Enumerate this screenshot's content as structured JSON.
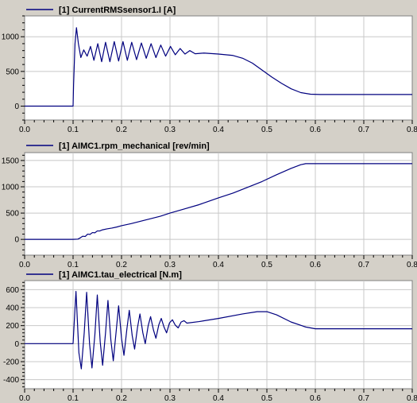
{
  "chart_data": [
    {
      "type": "line",
      "series": [
        {
          "name": "[1] CurrentRMSsensor1.I [A]",
          "color": "#00007f"
        }
      ],
      "xlim": [
        0,
        0.8
      ],
      "ylim": [
        -200,
        1300
      ],
      "x_ticks": [
        0.0,
        0.1,
        0.2,
        0.3,
        0.4,
        0.5,
        0.6,
        0.7,
        0.8
      ],
      "x_tick_labels": [
        "0.0",
        "0.1",
        "0.2",
        "0.3",
        "0.4",
        "0.5",
        "0.6",
        "0.7",
        "0.8"
      ],
      "y_ticks": [
        0,
        500,
        1000
      ],
      "y_tick_labels": [
        "0",
        "500",
        "1000"
      ],
      "grid": true,
      "legend": "top-left",
      "points": [
        [
          0.0,
          0
        ],
        [
          0.1,
          0
        ],
        [
          0.101,
          300
        ],
        [
          0.104,
          900
        ],
        [
          0.107,
          1130
        ],
        [
          0.111,
          900
        ],
        [
          0.116,
          700
        ],
        [
          0.122,
          810
        ],
        [
          0.129,
          720
        ],
        [
          0.136,
          860
        ],
        [
          0.143,
          660
        ],
        [
          0.151,
          900
        ],
        [
          0.159,
          640
        ],
        [
          0.167,
          920
        ],
        [
          0.176,
          640
        ],
        [
          0.185,
          930
        ],
        [
          0.194,
          650
        ],
        [
          0.203,
          930
        ],
        [
          0.212,
          660
        ],
        [
          0.221,
          920
        ],
        [
          0.231,
          670
        ],
        [
          0.241,
          910
        ],
        [
          0.251,
          690
        ],
        [
          0.261,
          900
        ],
        [
          0.271,
          700
        ],
        [
          0.281,
          880
        ],
        [
          0.291,
          720
        ],
        [
          0.301,
          860
        ],
        [
          0.311,
          740
        ],
        [
          0.321,
          830
        ],
        [
          0.331,
          750
        ],
        [
          0.341,
          800
        ],
        [
          0.352,
          755
        ],
        [
          0.37,
          765
        ],
        [
          0.4,
          750
        ],
        [
          0.43,
          730
        ],
        [
          0.45,
          690
        ],
        [
          0.47,
          620
        ],
        [
          0.49,
          520
        ],
        [
          0.51,
          420
        ],
        [
          0.53,
          330
        ],
        [
          0.55,
          250
        ],
        [
          0.57,
          195
        ],
        [
          0.59,
          172
        ],
        [
          0.61,
          168
        ],
        [
          0.8,
          168
        ]
      ]
    },
    {
      "type": "line",
      "series": [
        {
          "name": "[1] AIMC1.rpm_mechanical [rev/min]",
          "color": "#00007f"
        }
      ],
      "xlim": [
        0,
        0.8
      ],
      "ylim": [
        -300,
        1650
      ],
      "x_ticks": [
        0.0,
        0.1,
        0.2,
        0.3,
        0.4,
        0.5,
        0.6,
        0.7,
        0.8
      ],
      "x_tick_labels": [
        "0.0",
        "0.1",
        "0.2",
        "0.3",
        "0.4",
        "0.5",
        "0.6",
        "0.7",
        "0.8"
      ],
      "y_ticks": [
        0,
        500,
        1000,
        1500
      ],
      "y_tick_labels": [
        "0",
        "500",
        "1000",
        "1500"
      ],
      "grid": true,
      "legend": "top-left",
      "points": [
        [
          0.0,
          0
        ],
        [
          0.1,
          0
        ],
        [
          0.11,
          5
        ],
        [
          0.115,
          30
        ],
        [
          0.12,
          60
        ],
        [
          0.125,
          55
        ],
        [
          0.13,
          100
        ],
        [
          0.135,
          95
        ],
        [
          0.14,
          130
        ],
        [
          0.145,
          125
        ],
        [
          0.15,
          160
        ],
        [
          0.155,
          160
        ],
        [
          0.16,
          180
        ],
        [
          0.17,
          200
        ],
        [
          0.18,
          215
        ],
        [
          0.19,
          235
        ],
        [
          0.2,
          260
        ],
        [
          0.22,
          300
        ],
        [
          0.25,
          370
        ],
        [
          0.28,
          440
        ],
        [
          0.3,
          500
        ],
        [
          0.33,
          580
        ],
        [
          0.36,
          660
        ],
        [
          0.4,
          790
        ],
        [
          0.43,
          880
        ],
        [
          0.46,
          990
        ],
        [
          0.49,
          1100
        ],
        [
          0.52,
          1230
        ],
        [
          0.55,
          1350
        ],
        [
          0.57,
          1420
        ],
        [
          0.58,
          1440
        ],
        [
          0.8,
          1440
        ]
      ]
    },
    {
      "type": "line",
      "series": [
        {
          "name": "[1] AIMC1.tau_electrical [N.m]",
          "color": "#00007f"
        }
      ],
      "xlim": [
        0,
        0.8
      ],
      "ylim": [
        -500,
        700
      ],
      "x_ticks": [
        0.0,
        0.1,
        0.2,
        0.3,
        0.4,
        0.5,
        0.6,
        0.7,
        0.8
      ],
      "x_tick_labels": [
        "0.0",
        "0.1",
        "0.2",
        "0.3",
        "0.4",
        "0.5",
        "0.6",
        "0.7",
        "0.8"
      ],
      "y_ticks": [
        -400,
        -200,
        0,
        200,
        400,
        600
      ],
      "y_tick_labels": [
        "-400",
        "-200",
        "0",
        "200",
        "400",
        "600"
      ],
      "grid": true,
      "legend": "top-left",
      "points": [
        [
          0.0,
          0
        ],
        [
          0.1,
          0
        ],
        [
          0.102,
          200
        ],
        [
          0.106,
          580
        ],
        [
          0.112,
          -100
        ],
        [
          0.117,
          -280
        ],
        [
          0.123,
          120
        ],
        [
          0.128,
          570
        ],
        [
          0.134,
          0
        ],
        [
          0.139,
          -270
        ],
        [
          0.145,
          100
        ],
        [
          0.15,
          540
        ],
        [
          0.156,
          20
        ],
        [
          0.161,
          -240
        ],
        [
          0.167,
          120
        ],
        [
          0.172,
          480
        ],
        [
          0.178,
          40
        ],
        [
          0.183,
          -190
        ],
        [
          0.189,
          140
        ],
        [
          0.194,
          420
        ],
        [
          0.2,
          60
        ],
        [
          0.205,
          -130
        ],
        [
          0.211,
          160
        ],
        [
          0.216,
          370
        ],
        [
          0.222,
          90
        ],
        [
          0.227,
          -60
        ],
        [
          0.233,
          180
        ],
        [
          0.238,
          330
        ],
        [
          0.244,
          120
        ],
        [
          0.249,
          0
        ],
        [
          0.255,
          200
        ],
        [
          0.26,
          300
        ],
        [
          0.266,
          150
        ],
        [
          0.271,
          60
        ],
        [
          0.277,
          210
        ],
        [
          0.282,
          280
        ],
        [
          0.288,
          180
        ],
        [
          0.293,
          120
        ],
        [
          0.299,
          230
        ],
        [
          0.305,
          265
        ],
        [
          0.311,
          205
        ],
        [
          0.317,
          175
        ],
        [
          0.323,
          240
        ],
        [
          0.329,
          255
        ],
        [
          0.335,
          228
        ],
        [
          0.36,
          245
        ],
        [
          0.4,
          280
        ],
        [
          0.45,
          330
        ],
        [
          0.48,
          355
        ],
        [
          0.5,
          355
        ],
        [
          0.52,
          320
        ],
        [
          0.55,
          240
        ],
        [
          0.58,
          185
        ],
        [
          0.6,
          165
        ],
        [
          0.8,
          165
        ]
      ]
    }
  ]
}
